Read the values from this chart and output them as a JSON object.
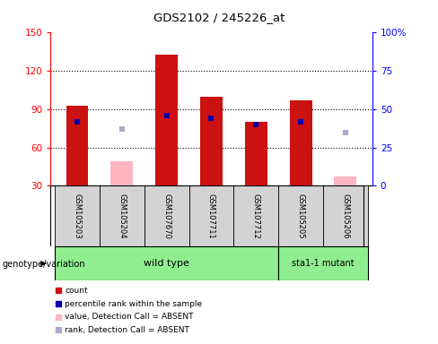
{
  "title": "GDS2102 / 245226_at",
  "samples": [
    "GSM105203",
    "GSM105204",
    "GSM107670",
    "GSM107711",
    "GSM107712",
    "GSM105205",
    "GSM105206"
  ],
  "count_values": [
    93,
    49,
    133,
    100,
    80,
    97,
    37
  ],
  "rank_values": [
    42,
    37,
    46,
    44,
    40,
    42,
    35
  ],
  "absent": [
    false,
    true,
    false,
    false,
    false,
    false,
    true
  ],
  "ylim_left": [
    30,
    150
  ],
  "ylim_right": [
    0,
    100
  ],
  "yticks_left": [
    30,
    60,
    90,
    120,
    150
  ],
  "yticks_right": [
    0,
    25,
    50,
    75,
    100
  ],
  "bar_width": 0.5,
  "color_present_bar": "#CC1111",
  "color_absent_bar": "#FFB6C1",
  "color_present_rank": "#0000AA",
  "color_absent_rank": "#AAAACC",
  "sample_bg": "#D3D3D3",
  "group_wt_color": "#90EE90",
  "group_mut_color": "#90EE90",
  "wt_label": "wild type",
  "mut_label": "sta1-1 mutant",
  "group_label": "genotype/variation",
  "legend_items": [
    {
      "color": "#CC1111",
      "label": "count"
    },
    {
      "color": "#0000AA",
      "label": "percentile rank within the sample"
    },
    {
      "color": "#FFB6C1",
      "label": "value, Detection Call = ABSENT"
    },
    {
      "color": "#AAAACC",
      "label": "rank, Detection Call = ABSENT"
    }
  ]
}
